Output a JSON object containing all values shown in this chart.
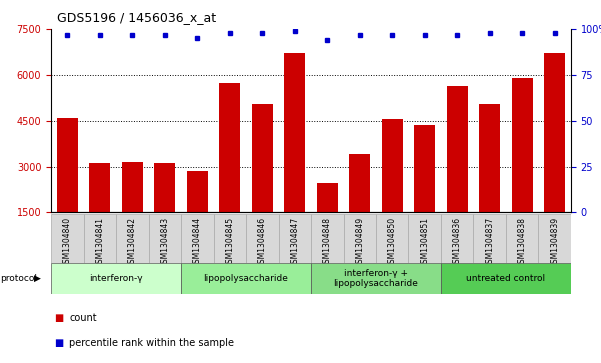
{
  "title": "GDS5196 / 1456036_x_at",
  "samples": [
    "GSM1304840",
    "GSM1304841",
    "GSM1304842",
    "GSM1304843",
    "GSM1304844",
    "GSM1304845",
    "GSM1304846",
    "GSM1304847",
    "GSM1304848",
    "GSM1304849",
    "GSM1304850",
    "GSM1304851",
    "GSM1304836",
    "GSM1304837",
    "GSM1304838",
    "GSM1304839"
  ],
  "counts": [
    4600,
    3100,
    3150,
    3100,
    2850,
    5750,
    5050,
    6700,
    2450,
    3400,
    4550,
    4350,
    5650,
    5050,
    5900,
    6700
  ],
  "percentile_ranks": [
    97,
    97,
    97,
    97,
    95,
    98,
    98,
    99,
    94,
    97,
    97,
    97,
    97,
    98,
    98,
    98
  ],
  "bar_color": "#cc0000",
  "dot_color": "#0000cc",
  "ylim_left": [
    1500,
    7500
  ],
  "yticks_left": [
    1500,
    3000,
    4500,
    6000,
    7500
  ],
  "ylim_right": [
    0,
    100
  ],
  "yticks_right": [
    0,
    25,
    50,
    75,
    100
  ],
  "gridlines": [
    3000,
    4500,
    6000
  ],
  "groups": [
    {
      "label": "interferon-γ",
      "start": 0,
      "end": 4,
      "color": "#ccffcc"
    },
    {
      "label": "lipopolysaccharide",
      "start": 4,
      "end": 8,
      "color": "#99ee99"
    },
    {
      "label": "interferon-γ +\nlipopolysaccharide",
      "start": 8,
      "end": 12,
      "color": "#88dd88"
    },
    {
      "label": "untreated control",
      "start": 12,
      "end": 16,
      "color": "#55cc55"
    }
  ],
  "left_tick_color": "#cc0000",
  "right_tick_color": "#0000cc",
  "legend_count_color": "#cc0000",
  "legend_pct_color": "#0000cc",
  "cell_color": "#d8d8d8",
  "cell_edge_color": "#aaaaaa",
  "title_fontsize": 9,
  "tick_fontsize": 7,
  "label_fontsize": 5.5,
  "group_fontsize": 6.5,
  "legend_fontsize": 7
}
